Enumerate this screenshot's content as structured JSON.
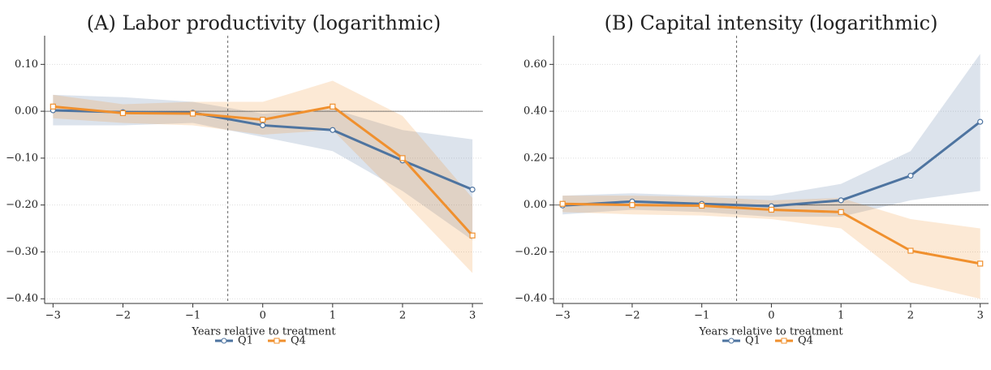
{
  "chart_data": [
    {
      "type": "line",
      "title": "(A) Labor productivity (logarithmic)",
      "xlabel": "Years relative to treatment",
      "x": [
        -3,
        -2,
        -1,
        0,
        1,
        2,
        3
      ],
      "xlim": [
        -3.12,
        3.15
      ],
      "ylim": [
        -0.41,
        0.13
      ],
      "xticks": [
        {
          "value": -3,
          "label": "−3"
        },
        {
          "value": -2,
          "label": "−2"
        },
        {
          "value": -1,
          "label": "−1"
        },
        0,
        1,
        2,
        3
      ],
      "yticks": [
        {
          "value": 0.1,
          "label": "0.10"
        },
        {
          "value": 0,
          "label": "0.00"
        },
        {
          "value": -0.1,
          "label": "−0.10"
        },
        {
          "value": -0.2,
          "label": "−0.20"
        },
        {
          "value": -0.3,
          "label": "−0.30"
        },
        {
          "value": -0.4,
          "label": "−0.40"
        }
      ],
      "grid": true,
      "vline": -0.5,
      "hline": 0,
      "legend": "bottom",
      "series": [
        {
          "name": "Q1",
          "color": "#4e74a0",
          "marker": "circle",
          "values": [
            0.002,
            -0.002,
            -0.003,
            -0.03,
            -0.04,
            -0.105,
            -0.167
          ],
          "lower": [
            -0.03,
            -0.03,
            -0.025,
            -0.055,
            -0.085,
            -0.17,
            -0.275
          ],
          "upper": [
            0.035,
            0.03,
            0.02,
            -0.005,
            0.005,
            -0.04,
            -0.06
          ]
        },
        {
          "name": "Q4",
          "color": "#f0902e",
          "marker": "square",
          "values": [
            0.01,
            -0.004,
            -0.005,
            -0.018,
            0.01,
            -0.1,
            -0.265
          ],
          "lower": [
            -0.015,
            -0.025,
            -0.03,
            -0.05,
            -0.04,
            -0.19,
            -0.345
          ],
          "upper": [
            0.035,
            0.015,
            0.02,
            0.02,
            0.065,
            -0.01,
            -0.185
          ]
        }
      ]
    },
    {
      "type": "line",
      "title": "(B) Capital intensity (logarithmic)",
      "xlabel": "Years relative to treatment",
      "x": [
        -3,
        -2,
        -1,
        0,
        1,
        2,
        3
      ],
      "xlim": [
        -3.13,
        3.12
      ],
      "ylim": [
        -0.42,
        0.66
      ],
      "xticks": [
        {
          "value": -3,
          "label": "−3"
        },
        {
          "value": -2,
          "label": "−2"
        },
        {
          "value": -1,
          "label": "−1"
        },
        0,
        1,
        2,
        3
      ],
      "yticks": [
        {
          "value": 0.6,
          "label": "0.60"
        },
        {
          "value": 0.4,
          "label": "0.40"
        },
        {
          "value": 0.2,
          "label": "0.20"
        },
        {
          "value": 0,
          "label": "0.00"
        },
        {
          "value": -0.2,
          "label": "−0.20"
        },
        {
          "value": -0.4,
          "label": "−0.40"
        }
      ],
      "grid": true,
      "vline": -0.5,
      "hline": 0,
      "legend": "bottom",
      "series": [
        {
          "name": "Q1",
          "color": "#4e74a0",
          "marker": "circle",
          "values": [
            -0.002,
            0.015,
            0.005,
            -0.005,
            0.02,
            0.125,
            0.355
          ],
          "lower": [
            -0.04,
            -0.02,
            -0.03,
            -0.05,
            -0.05,
            0.02,
            0.06
          ],
          "upper": [
            0.04,
            0.05,
            0.04,
            0.04,
            0.09,
            0.23,
            0.645
          ]
        },
        {
          "name": "Q4",
          "color": "#f0902e",
          "marker": "square",
          "values": [
            0.005,
            0.0,
            -0.003,
            -0.02,
            -0.03,
            -0.195,
            -0.25
          ],
          "lower": [
            -0.03,
            -0.04,
            -0.045,
            -0.06,
            -0.1,
            -0.33,
            -0.4
          ],
          "upper": [
            0.04,
            0.04,
            0.035,
            0.02,
            0.03,
            -0.06,
            -0.1
          ]
        }
      ]
    }
  ]
}
